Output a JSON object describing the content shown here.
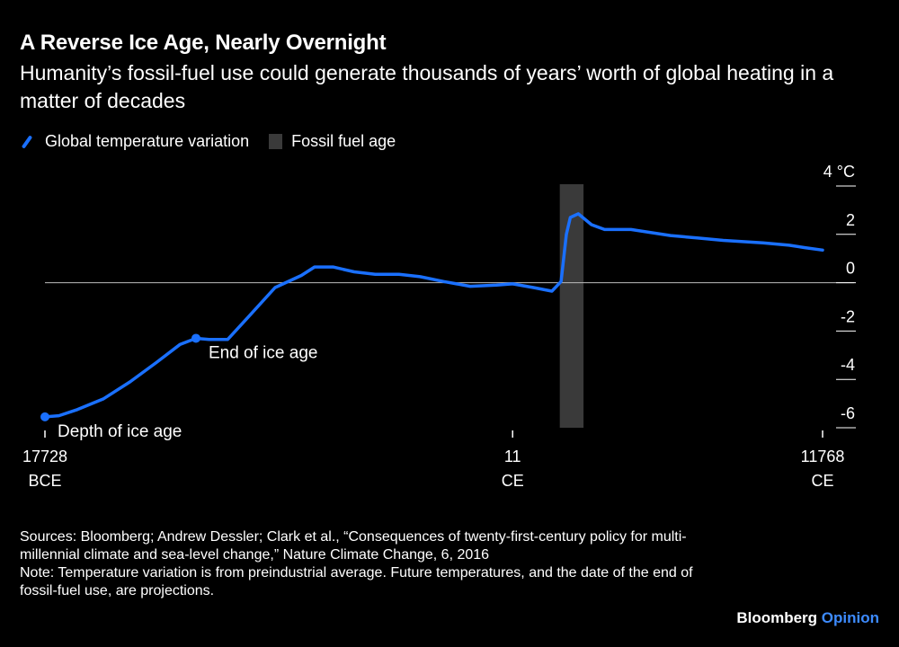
{
  "header": {
    "title": "A Reverse Ice Age, Nearly Overnight",
    "subtitle": "Humanity’s fossil-fuel use could generate thousands of years’ worth of global heating in a matter of decades"
  },
  "legend": {
    "line_label": "Global temperature variation",
    "bar_label": "Fossil fuel age"
  },
  "colors": {
    "line": "#1a70ff",
    "fossil_band": "#3a3a3a",
    "background": "#000000",
    "text": "#ffffff"
  },
  "chart_data": {
    "type": "line",
    "title": "A Reverse Ice Age, Nearly Overnight",
    "y_unit": "°C",
    "ylim": [
      -6,
      4
    ],
    "y_ticks": [
      {
        "value": 4,
        "label": "4 °C"
      },
      {
        "value": 2,
        "label": "2"
      },
      {
        "value": 0,
        "label": "0"
      },
      {
        "value": -2,
        "label": "-2"
      },
      {
        "value": -4,
        "label": "-4"
      },
      {
        "value": -6,
        "label": "-6"
      }
    ],
    "xlim": [
      -17728,
      11768
    ],
    "x_ticks": [
      {
        "value": -17728,
        "line1": "17728",
        "line2": "BCE"
      },
      {
        "value": 11,
        "line1": "11",
        "line2": "CE"
      },
      {
        "value": 11768,
        "line1": "11768",
        "line2": "CE"
      }
    ],
    "fossil_fuel_age": {
      "start": 1800,
      "end": 2700
    },
    "series": [
      {
        "name": "Global temperature variation",
        "x": [
          -17728,
          -17200,
          -16500,
          -15500,
          -14500,
          -13500,
          -12600,
          -12000,
          -11500,
          -10800,
          -10000,
          -9000,
          -8000,
          -7500,
          -6800,
          -6000,
          -5200,
          -4300,
          -3500,
          -2600,
          -1600,
          -600,
          11,
          800,
          1500,
          1850,
          2050,
          2200,
          2500,
          3000,
          3500,
          4500,
          6000,
          7000,
          8000,
          9500,
          10500,
          11100,
          11768
        ],
        "y": [
          -5.55,
          -5.5,
          -5.25,
          -4.8,
          -4.1,
          -3.3,
          -2.55,
          -2.3,
          -2.35,
          -2.35,
          -1.4,
          -0.2,
          0.3,
          0.65,
          0.65,
          0.45,
          0.35,
          0.35,
          0.25,
          0.05,
          -0.15,
          -0.1,
          -0.05,
          -0.2,
          -0.35,
          0.05,
          2.0,
          2.7,
          2.85,
          2.4,
          2.2,
          2.2,
          1.95,
          1.85,
          1.75,
          1.65,
          1.55,
          1.45,
          1.35
        ]
      }
    ],
    "annotations": [
      {
        "label": "Depth of ice age",
        "x": -17728,
        "y": -5.55
      },
      {
        "label": "End of ice age",
        "x": -12000,
        "y": -2.3
      }
    ]
  },
  "footer": {
    "sources": "Sources: Bloomberg; Andrew Dessler; Clark et al., “Consequences of twenty-first-century policy for multi-millennial climate and sea-level change,” Nature Climate Change, 6, 2016",
    "note": "Note: Temperature variation is from preindustrial average. Future temperatures, and the date of the end of fossil-fuel use, are projections."
  },
  "brand": {
    "name": "Bloomberg",
    "suffix": "Opinion"
  }
}
